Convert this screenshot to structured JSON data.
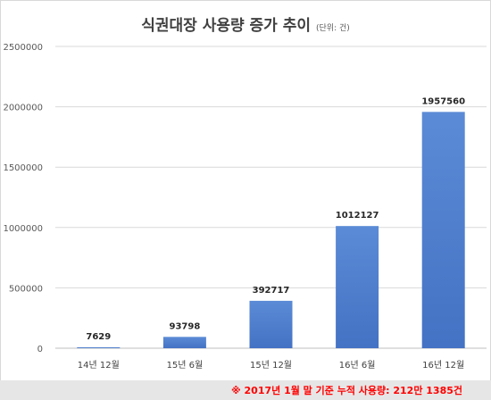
{
  "chart_data": {
    "type": "bar",
    "title": "식권대장 사용량 증가 추이",
    "unit_note": "(단위: 건)",
    "categories": [
      "14년 12월",
      "15년 6월",
      "15년 12월",
      "16년 6월",
      "16년 12월"
    ],
    "values": [
      7629,
      93798,
      392717,
      1012127,
      1957560
    ],
    "value_labels": [
      "7629",
      "93798",
      "392717",
      "1012127",
      "1957560"
    ],
    "yticks": [
      0,
      500000,
      1000000,
      1500000,
      2000000,
      2500000
    ],
    "ytick_labels": [
      "0",
      "500000",
      "1000000",
      "1500000",
      "2000000",
      "2500000"
    ],
    "ylim": [
      0,
      2500000
    ],
    "grid": true,
    "legend": "none",
    "bar_color": "#4472c4",
    "footnote": "※ 2017년 1월 말 기준 누적 사용량: 212만 1385건"
  },
  "colors": {
    "bar": "#4472c4",
    "grid": "#d9d9d9",
    "footnote": "#ff0000",
    "footer_bg": "#e7e6e6"
  }
}
